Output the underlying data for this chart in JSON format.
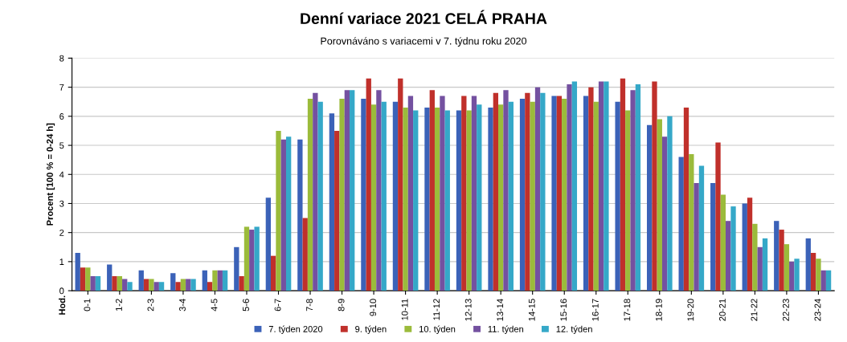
{
  "chart_data": {
    "type": "bar",
    "title": "Denní variace 2021 CELÁ PRAHA",
    "subtitle": "Porovnáváno s variacemi v 7. týdnu roku 2020",
    "annotations": [
      "Hod."
    ],
    "ylabel": "Procent [100 % = 0-24 h]",
    "categories": [
      "0-1",
      "1-2",
      "2-3",
      "3-4",
      "4-5",
      "5-6",
      "6-7",
      "7-8",
      "8-9",
      "9-10",
      "10-11",
      "11-12",
      "12-13",
      "13-14",
      "14-15",
      "15-16",
      "16-17",
      "17-18",
      "18-19",
      "19-20",
      "20-21",
      "21-22",
      "22-23",
      "23-24"
    ],
    "series": [
      {
        "name": "7. týden 2020",
        "color": "#3b62b8",
        "values": [
          1.3,
          0.9,
          0.7,
          0.6,
          0.7,
          1.5,
          3.2,
          5.2,
          6.1,
          6.6,
          6.5,
          6.3,
          6.2,
          6.3,
          6.6,
          6.7,
          6.7,
          6.5,
          5.7,
          4.6,
          3.7,
          3.0,
          2.4,
          1.8
        ]
      },
      {
        "name": "9. týden",
        "color": "#c0302b",
        "values": [
          0.8,
          0.5,
          0.4,
          0.3,
          0.3,
          0.5,
          1.2,
          2.5,
          5.5,
          7.3,
          7.3,
          6.9,
          6.7,
          6.8,
          6.8,
          6.7,
          7.0,
          7.3,
          7.2,
          6.3,
          5.1,
          3.2,
          2.1,
          1.3
        ]
      },
      {
        "name": "10. týden",
        "color": "#9bbb3b",
        "values": [
          0.8,
          0.5,
          0.4,
          0.4,
          0.7,
          2.2,
          5.5,
          6.6,
          6.6,
          6.4,
          6.3,
          6.3,
          6.2,
          6.4,
          6.5,
          6.6,
          6.5,
          6.2,
          5.9,
          4.7,
          3.3,
          2.3,
          1.6,
          1.1
        ]
      },
      {
        "name": "11. týden",
        "color": "#7451a0",
        "values": [
          0.5,
          0.4,
          0.3,
          0.4,
          0.7,
          2.1,
          5.2,
          6.8,
          6.9,
          6.9,
          6.7,
          6.7,
          6.7,
          6.9,
          7.0,
          7.1,
          7.2,
          6.9,
          5.3,
          3.7,
          2.4,
          1.5,
          1.0,
          0.7
        ]
      },
      {
        "name": "12. týden",
        "color": "#35a8c8",
        "values": [
          0.5,
          0.3,
          0.3,
          0.4,
          0.7,
          2.2,
          5.3,
          6.5,
          6.9,
          6.5,
          6.2,
          6.2,
          6.4,
          6.5,
          6.8,
          7.2,
          7.2,
          7.1,
          6.0,
          4.3,
          2.9,
          1.8,
          1.1,
          0.7
        ]
      }
    ],
    "ylim": [
      0,
      8
    ],
    "yticks": [
      0,
      1,
      2,
      3,
      4,
      5,
      6,
      7,
      8
    ],
    "grid": "y",
    "legend": "bottom"
  }
}
